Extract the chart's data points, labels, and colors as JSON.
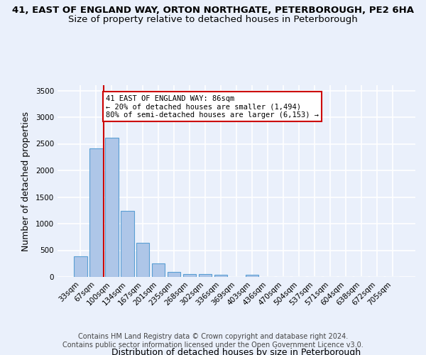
{
  "title_line1": "41, EAST OF ENGLAND WAY, ORTON NORTHGATE, PETERBOROUGH, PE2 6HA",
  "title_line2": "Size of property relative to detached houses in Peterborough",
  "xlabel": "Distribution of detached houses by size in Peterborough",
  "ylabel": "Number of detached properties",
  "categories": [
    "33sqm",
    "67sqm",
    "100sqm",
    "134sqm",
    "167sqm",
    "201sqm",
    "235sqm",
    "268sqm",
    "302sqm",
    "336sqm",
    "369sqm",
    "403sqm",
    "436sqm",
    "470sqm",
    "504sqm",
    "537sqm",
    "571sqm",
    "604sqm",
    "638sqm",
    "672sqm",
    "705sqm"
  ],
  "values": [
    390,
    2410,
    2610,
    1240,
    640,
    255,
    90,
    55,
    55,
    45,
    0,
    35,
    0,
    0,
    0,
    0,
    0,
    0,
    0,
    0,
    0
  ],
  "bar_color": "#aec6e8",
  "bar_edge_color": "#5a9fd4",
  "property_line_x": 1.5,
  "vline_color": "#cc0000",
  "annotation_text": "41 EAST OF ENGLAND WAY: 86sqm\n← 20% of detached houses are smaller (1,494)\n80% of semi-detached houses are larger (6,153) →",
  "annotation_box_color": "#ffffff",
  "annotation_border_color": "#cc0000",
  "ylim": [
    0,
    3600
  ],
  "yticks": [
    0,
    500,
    1000,
    1500,
    2000,
    2500,
    3000,
    3500
  ],
  "footer_line1": "Contains HM Land Registry data © Crown copyright and database right 2024.",
  "footer_line2": "Contains public sector information licensed under the Open Government Licence v3.0.",
  "background_color": "#eaf0fb",
  "plot_bg_color": "#eaf0fb",
  "grid_color": "#ffffff",
  "title1_fontsize": 9.5,
  "title2_fontsize": 9.5,
  "tick_fontsize": 7.5,
  "ylabel_fontsize": 9,
  "xlabel_fontsize": 9,
  "footer_fontsize": 7.0,
  "annot_fontsize": 7.5
}
